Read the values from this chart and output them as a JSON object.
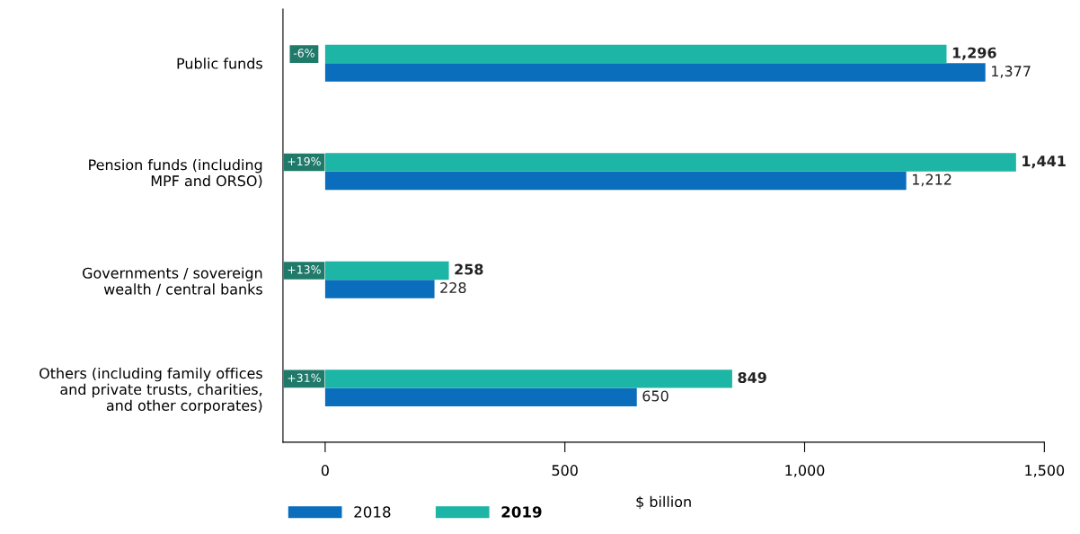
{
  "chart_data": {
    "type": "bar",
    "orientation": "horizontal",
    "xlabel": "$ billion",
    "categories": [
      "Public funds",
      "Pension funds (including\nMPF and ORSO)",
      "Governments / sovereign\nwealth / central banks",
      "Others (including family offices\nand private trusts, charities,\nand other corporates)"
    ],
    "series": [
      {
        "name": "2018",
        "color": "#0a6ebd",
        "values": [
          1377,
          1212,
          228,
          650
        ],
        "value_labels": [
          "1,377",
          "1,212",
          "228",
          "650"
        ]
      },
      {
        "name": "2019",
        "color": "#1db5a5",
        "values": [
          1296,
          1441,
          258,
          849
        ],
        "value_labels": [
          "1,296",
          "1,441",
          "258",
          "849"
        ]
      }
    ],
    "xlim": [
      -88,
      1500
    ],
    "xticks": [
      0,
      500,
      {
        "value": 1000,
        "label": "1,000"
      },
      {
        "value": 1500,
        "label": "1,500"
      }
    ],
    "annotations": [
      "-6%",
      "+19%",
      "+13%",
      "+31%"
    ],
    "grid": false,
    "legend": "bottom left"
  }
}
